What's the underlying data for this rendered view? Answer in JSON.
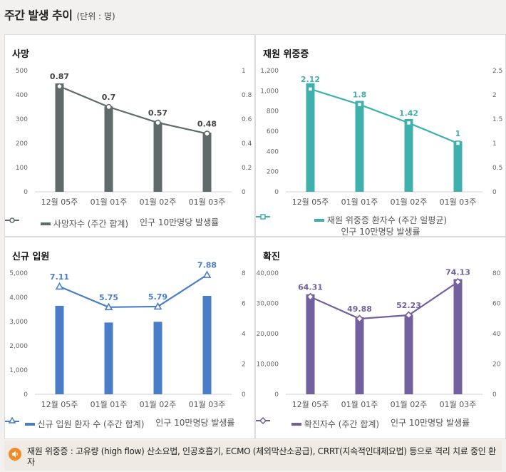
{
  "header": {
    "title": "주간 발생 추이",
    "unit": "(단위 : 명)"
  },
  "categories_common": [
    "12월 05주",
    "01월 01주",
    "01월 02주",
    "01월 03주"
  ],
  "chart_data": [
    {
      "id": "deaths",
      "type": "bar",
      "title": "사망",
      "categories": [
        "12월 05주",
        "01월 01주",
        "01월 02주",
        "01월 03주"
      ],
      "series": [
        {
          "name": "사망자수 (주간 합계)",
          "kind": "bar",
          "axis": "left",
          "values": [
            447,
            352,
            287,
            244
          ]
        },
        {
          "name": "인구 10만명당 발생률",
          "kind": "line",
          "axis": "right",
          "marker": "circle",
          "values": [
            0.87,
            0.7,
            0.57,
            0.48
          ],
          "labels": [
            "0.87",
            "0.7",
            "0.57",
            "0.48"
          ]
        }
      ],
      "left_axis": {
        "min": 0,
        "max": 500,
        "ticks": [
          "0",
          "100",
          "200",
          "300",
          "400",
          "500"
        ],
        "tick_values": [
          0,
          100,
          200,
          300,
          400,
          500
        ]
      },
      "right_axis": {
        "min": 0,
        "max": 1,
        "ticks": [
          "0",
          "0.2",
          "0.4",
          "0.6",
          "0.8",
          "1"
        ],
        "tick_values": [
          0,
          0.2,
          0.4,
          0.6,
          0.8,
          1
        ]
      },
      "colors": {
        "bar": "#5f6b6a",
        "line": "#5f6b6a"
      },
      "legend": [
        "사망자수 (주간 합계)",
        "인구 10만명당 발생률"
      ]
    },
    {
      "id": "severe",
      "type": "bar",
      "title": "재원 위중증",
      "categories": [
        "12월 05주",
        "01월 01주",
        "01월 02주",
        "01월 03주"
      ],
      "series": [
        {
          "name": "재원 위중증 환자수 (주간 일평균)",
          "kind": "bar",
          "axis": "left",
          "values": [
            1075,
            900,
            720,
            500
          ]
        },
        {
          "name": "인구 10만명당 발생률",
          "kind": "line",
          "axis": "right",
          "marker": "square",
          "values": [
            2.12,
            1.8,
            1.42,
            1
          ],
          "labels": [
            "2.12",
            "1.8",
            "1.42",
            "1"
          ]
        }
      ],
      "left_axis": {
        "min": 0,
        "max": 1200,
        "ticks": [
          "0",
          "200",
          "400",
          "600",
          "800",
          "1,000",
          "1,200"
        ],
        "tick_values": [
          0,
          200,
          400,
          600,
          800,
          1000,
          1200
        ]
      },
      "right_axis": {
        "min": 0,
        "max": 2.5,
        "ticks": [
          "0",
          "0.5",
          "1",
          "1.5",
          "2",
          "2.5"
        ],
        "tick_values": [
          0,
          0.5,
          1,
          1.5,
          2,
          2.5
        ]
      },
      "colors": {
        "bar": "#3fb1ad",
        "line": "#3fb1ad"
      },
      "legend": [
        "재원 위중증 환자수 (주간 일평균)",
        "인구 10만명당 발생률"
      ]
    },
    {
      "id": "admit",
      "type": "bar",
      "title": "신규 입원",
      "categories": [
        "12월 05주",
        "01월 01주",
        "01월 02주",
        "01월 03주"
      ],
      "series": [
        {
          "name": "신규 입원 환자 수 (주간 합계)",
          "kind": "bar",
          "axis": "left",
          "values": [
            3650,
            2960,
            2990,
            4060
          ]
        },
        {
          "name": "인구 10만명당 발생률",
          "kind": "line",
          "axis": "right",
          "marker": "triangle",
          "values": [
            7.11,
            5.75,
            5.79,
            7.88
          ],
          "labels": [
            "7.11",
            "5.75",
            "5.79",
            "7.88"
          ]
        }
      ],
      "left_axis": {
        "min": 0,
        "max": 5000,
        "ticks": [
          "0",
          "1,000",
          "2,000",
          "3,000",
          "4,000",
          "5,000"
        ],
        "tick_values": [
          0,
          1000,
          2000,
          3000,
          4000,
          5000
        ]
      },
      "right_axis": {
        "min": 0,
        "max": 8,
        "ticks": [
          "0",
          "2",
          "4",
          "6",
          "8"
        ],
        "tick_values": [
          0,
          2,
          4,
          6,
          8
        ]
      },
      "colors": {
        "bar": "#4a7dc8",
        "line": "#4a7dc8"
      },
      "legend": [
        "신규 입원 환자 수 (주간 합계)",
        "인구 10만명당 발생률"
      ]
    },
    {
      "id": "confirmed",
      "type": "bar",
      "title": "확진",
      "categories": [
        "12월 05주",
        "01월 01주",
        "01월 02주",
        "01월 03주"
      ],
      "series": [
        {
          "name": "확진자수 (주간 합계)",
          "kind": "bar",
          "axis": "left",
          "values": [
            33000,
            25400,
            26300,
            38000
          ]
        },
        {
          "name": "인구 10만명당 발생률",
          "kind": "line",
          "axis": "right",
          "marker": "diamond",
          "values": [
            64.31,
            49.88,
            52.23,
            74.13
          ],
          "labels": [
            "64.31",
            "49.88",
            "52.23",
            "74.13"
          ]
        }
      ],
      "left_axis": {
        "min": 0,
        "max": 40000,
        "ticks": [
          "0",
          "10,000",
          "20,000",
          "30,000",
          "40,000"
        ],
        "tick_values": [
          0,
          10000,
          20000,
          30000,
          40000
        ]
      },
      "right_axis": {
        "min": 0,
        "max": 80,
        "ticks": [
          "0",
          "20",
          "40",
          "60",
          "80"
        ],
        "tick_values": [
          0,
          20,
          40,
          60,
          80
        ]
      },
      "colors": {
        "bar": "#73609e",
        "line": "#73609e"
      },
      "legend": [
        "확진자수 (주간 합계)",
        "인구 10만명당 발생률"
      ]
    }
  ],
  "note": {
    "icon": "speaker-icon",
    "text": "재원 위중증 : 고유량 (high flow) 산소요법, 인공호흡기, ECMO (체외막산소공급), CRRT(지속적인대체요법) 등으로 격리 치료 중인 환자",
    "icon_color": "#f08b2a"
  }
}
